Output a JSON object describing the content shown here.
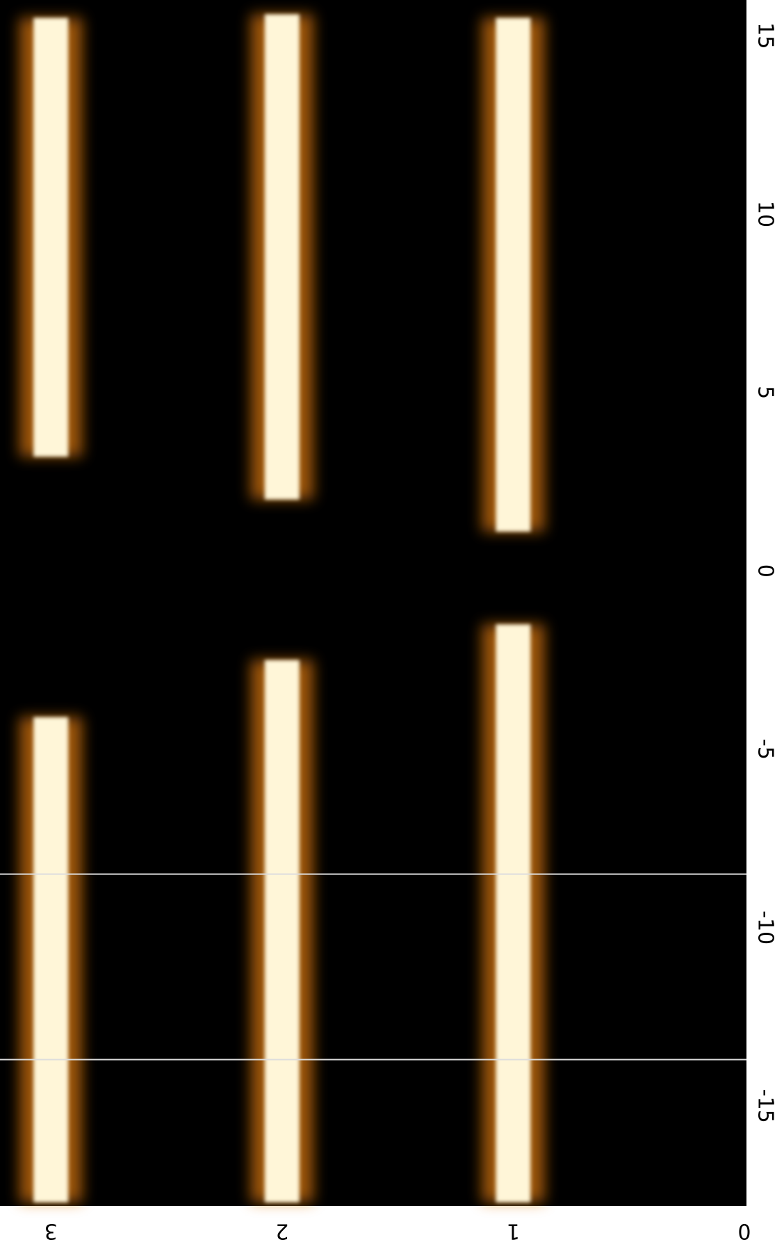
{
  "chart_data": {
    "type": "streak",
    "xlim": [
      -17.8,
      16
    ],
    "xticks": [
      -15,
      -10,
      -5,
      0,
      5,
      10,
      15
    ],
    "ylim": [
      0,
      3.22
    ],
    "yticks": [
      0,
      1,
      2,
      3
    ],
    "streaks": [
      {
        "y": 1,
        "ranges": [
          [
            -17.7,
            -1.5
          ],
          [
            1.1,
            15.5
          ]
        ]
      },
      {
        "y": 2,
        "ranges": [
          [
            -17.7,
            -2.5
          ],
          [
            2.0,
            15.6
          ]
        ]
      },
      {
        "y": 3,
        "ranges": [
          [
            -17.7,
            -4.1
          ],
          [
            3.2,
            15.5
          ]
        ]
      }
    ],
    "hlines": [
      -8.5,
      -13.7
    ],
    "core_color": "#fff6d8",
    "glow_color": "#e07a10",
    "background": "#000000",
    "line_color": "#dddddd"
  }
}
